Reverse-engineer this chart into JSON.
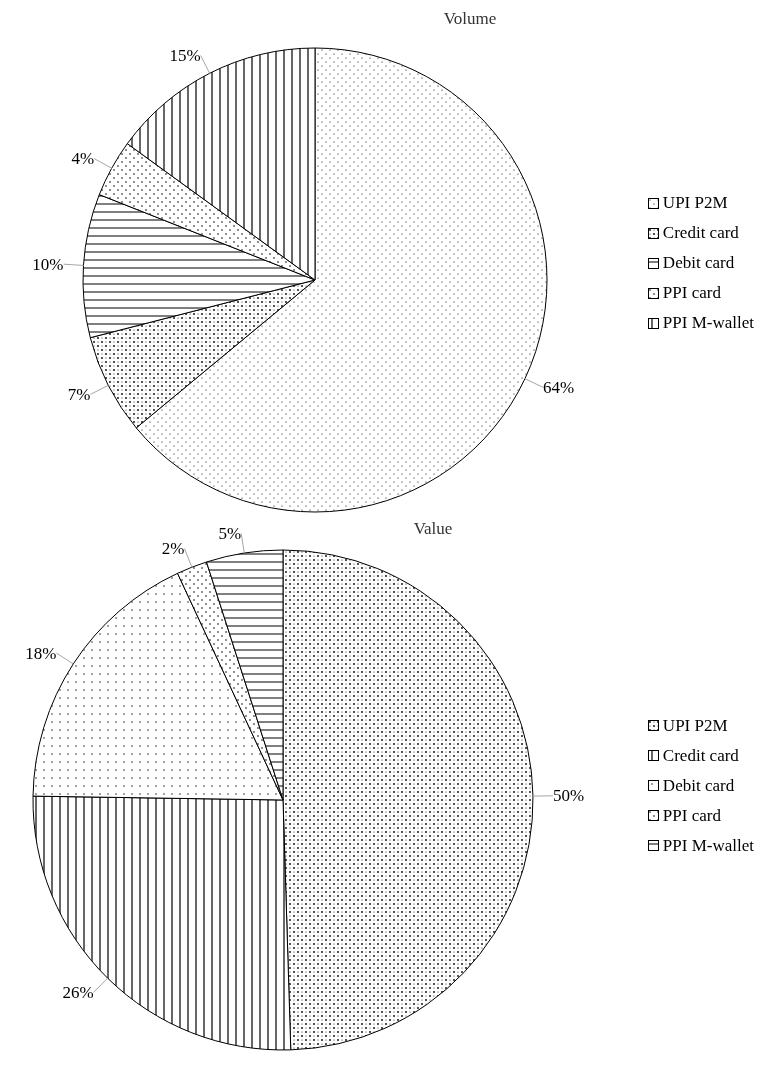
{
  "chart_data": [
    {
      "type": "pie",
      "title": "Volume",
      "categories": [
        "UPI P2M",
        "Credit card",
        "Debit card",
        "PPI card",
        "PPI M-wallet"
      ],
      "values": [
        64,
        7,
        10,
        4,
        15
      ],
      "value_labels": [
        "64%",
        "7%",
        "10%",
        "4%",
        "15%"
      ],
      "colors": [
        "#000000",
        "#000000",
        "#000000",
        "#000000",
        "#000000"
      ],
      "legend": "right"
    },
    {
      "type": "pie",
      "title": "Value",
      "categories": [
        "UPI P2M",
        "Credit card",
        "Debit card",
        "PPI card",
        "PPI M-wallet"
      ],
      "values": [
        50,
        26,
        18,
        2,
        5
      ],
      "value_labels": [
        "50%",
        "26%",
        "18%",
        "2%",
        "5%"
      ],
      "colors": [
        "#000000",
        "#000000",
        "#000000",
        "#000000",
        "#000000"
      ],
      "legend": "right"
    }
  ]
}
